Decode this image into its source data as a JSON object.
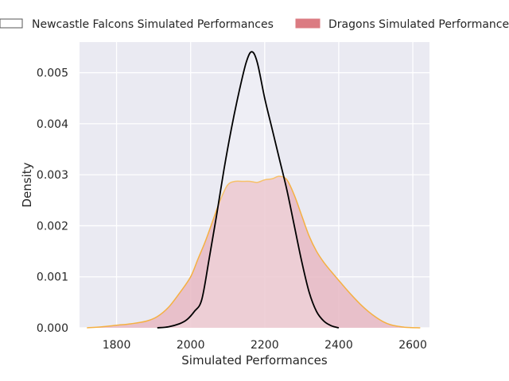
{
  "chart_data": {
    "type": "area",
    "xlabel": "Simulated Performances",
    "ylabel": "Density",
    "xlim": [
      1700,
      2645
    ],
    "ylim": [
      0,
      0.0056
    ],
    "xticks": [
      1800,
      2000,
      2200,
      2400,
      2600
    ],
    "yticks": [
      "0.000",
      "0.001",
      "0.002",
      "0.003",
      "0.004",
      "0.005"
    ],
    "grid": true,
    "legend_position": "top, outside plot",
    "series": [
      {
        "name": "Newcastle Falcons Simulated Performances",
        "style": "line",
        "color": "#000000",
        "points": [
          [
            1910,
            0
          ],
          [
            1940,
            2e-05
          ],
          [
            1970,
            8e-05
          ],
          [
            1990,
            0.00016
          ],
          [
            2010,
            0.00032
          ],
          [
            2030,
            0.00055
          ],
          [
            2050,
            0.00135
          ],
          [
            2070,
            0.0022
          ],
          [
            2090,
            0.0031
          ],
          [
            2110,
            0.0039
          ],
          [
            2130,
            0.0046
          ],
          [
            2150,
            0.0052
          ],
          [
            2165,
            0.00541
          ],
          [
            2180,
            0.0052
          ],
          [
            2200,
            0.0045
          ],
          [
            2220,
            0.0039
          ],
          [
            2240,
            0.0033
          ],
          [
            2260,
            0.0027
          ],
          [
            2280,
            0.002
          ],
          [
            2300,
            0.0013
          ],
          [
            2320,
            0.0007
          ],
          [
            2340,
            0.00032
          ],
          [
            2360,
            0.00013
          ],
          [
            2380,
            4e-05
          ],
          [
            2400,
            0
          ]
        ]
      },
      {
        "name": "Dragons Simulated Performances",
        "style": "filled",
        "color": "#db7b82",
        "fill_color": "#e8b9c3",
        "edge_color": "#f5b041",
        "points": [
          [
            1720,
            0
          ],
          [
            1760,
            2e-05
          ],
          [
            1800,
            5e-05
          ],
          [
            1840,
            8e-05
          ],
          [
            1880,
            0.00013
          ],
          [
            1910,
            0.00022
          ],
          [
            1940,
            0.0004
          ],
          [
            1970,
            0.00068
          ],
          [
            2000,
            0.001
          ],
          [
            2020,
            0.00135
          ],
          [
            2040,
            0.0017
          ],
          [
            2060,
            0.0021
          ],
          [
            2080,
            0.0025
          ],
          [
            2100,
            0.0028
          ],
          [
            2120,
            0.00287
          ],
          [
            2140,
            0.00287
          ],
          [
            2160,
            0.00287
          ],
          [
            2180,
            0.00285
          ],
          [
            2200,
            0.0029
          ],
          [
            2220,
            0.00292
          ],
          [
            2240,
            0.00297
          ],
          [
            2260,
            0.0029
          ],
          [
            2280,
            0.0026
          ],
          [
            2300,
            0.0022
          ],
          [
            2320,
            0.0018
          ],
          [
            2340,
            0.0015
          ],
          [
            2360,
            0.00128
          ],
          [
            2380,
            0.0011
          ],
          [
            2400,
            0.00093
          ],
          [
            2420,
            0.00076
          ],
          [
            2440,
            0.0006
          ],
          [
            2460,
            0.00045
          ],
          [
            2480,
            0.00032
          ],
          [
            2500,
            0.00021
          ],
          [
            2520,
            0.00012
          ],
          [
            2540,
            6e-05
          ],
          [
            2560,
            3e-05
          ],
          [
            2580,
            1e-05
          ],
          [
            2620,
            0
          ]
        ]
      }
    ]
  }
}
